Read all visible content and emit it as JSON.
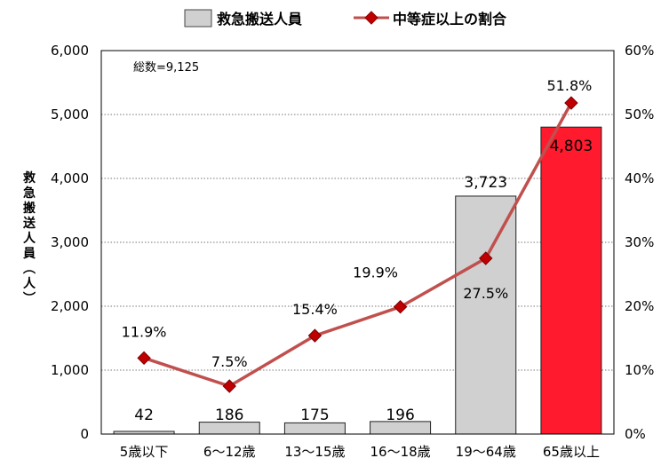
{
  "chart_data": {
    "type": "bar",
    "categories": [
      "5歳以下",
      "6～12歳",
      "13～15歳",
      "16～18歳",
      "19～64歳",
      "65歳以上"
    ],
    "series": [
      {
        "name": "救急搬送人員",
        "type": "bar",
        "axis": "left",
        "values": [
          42,
          186,
          175,
          196,
          3723,
          4803
        ],
        "labels": [
          "42",
          "186",
          "175",
          "196",
          "3,723",
          "4,803"
        ],
        "colors": [
          "#d0d0d0",
          "#d0d0d0",
          "#d0d0d0",
          "#d0d0d0",
          "#d0d0d0",
          "#ff1a2e"
        ]
      },
      {
        "name": "中等症以上の割合",
        "type": "line",
        "axis": "right",
        "values": [
          11.9,
          7.5,
          15.4,
          19.9,
          27.5,
          51.8
        ],
        "labels": [
          "11.9%",
          "7.5%",
          "15.4%",
          "19.9%",
          "27.5%",
          "51.8%"
        ],
        "color": "#c0504d",
        "marker_color": "#c00000"
      }
    ],
    "ylabel": "救急搬送人員(人)",
    "ylim": [
      0,
      6000
    ],
    "y_ticks": [
      "0",
      "1,000",
      "2,000",
      "3,000",
      "4,000",
      "5,000",
      "6,000"
    ],
    "y2lim": [
      0,
      60
    ],
    "y2_ticks": [
      "0%",
      "10%",
      "20%",
      "30%",
      "40%",
      "50%",
      "60%"
    ],
    "annotation": "総数=9,125",
    "grid": true,
    "legend_position": "top"
  }
}
